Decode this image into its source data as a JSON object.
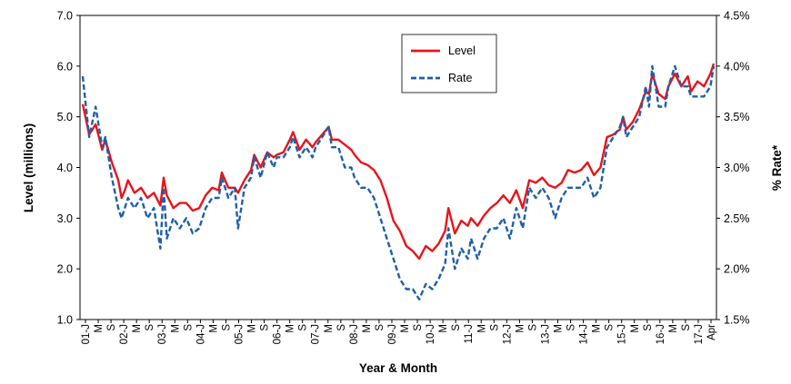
{
  "chart_data": {
    "type": "line",
    "xlabel": "Year & Month",
    "ylabel_left": "Level (millions)",
    "ylabel_right": "% Rate*",
    "ylim_left": [
      1.0,
      7.0
    ],
    "yticks_left": [
      "1.0",
      "2.0",
      "3.0",
      "4.0",
      "5.0",
      "6.0",
      "7.0"
    ],
    "ylim_right": [
      1.5,
      4.5
    ],
    "yticks_right": [
      "1.5%",
      "2.0%",
      "2.5%",
      "3.0%",
      "3.5%",
      "4.0%",
      "4.5%"
    ],
    "grid": false,
    "legend_position": "top-center",
    "x_start": "2001-01",
    "x_end": "2017-04",
    "x_tick_labels": [
      "01-J",
      "M",
      "S",
      "02-J",
      "M",
      "S",
      "03-J",
      "M",
      "S",
      "04-J",
      "M",
      "S",
      "05-J",
      "M",
      "S",
      "06-J",
      "M",
      "S",
      "07-J",
      "M",
      "S",
      "08-J",
      "M",
      "S",
      "09-J",
      "M",
      "S",
      "10-J",
      "M",
      "S",
      "11-J",
      "M",
      "S",
      "12-J",
      "M",
      "S",
      "13-J",
      "M",
      "S",
      "14-J",
      "M",
      "S",
      "15-J",
      "M",
      "S",
      "16-J",
      "M",
      "S",
      "17-J",
      "Apr"
    ],
    "series": [
      {
        "name": "Level",
        "axis": "left",
        "color": "#e8141a",
        "style": "solid",
        "points": [
          [
            "2001-01",
            5.25
          ],
          [
            "2001-03",
            4.65
          ],
          [
            "2001-05",
            4.85
          ],
          [
            "2001-07",
            4.35
          ],
          [
            "2001-08",
            4.55
          ],
          [
            "2001-10",
            4.1
          ],
          [
            "2001-12",
            3.75
          ],
          [
            "2002-01",
            3.4
          ],
          [
            "2002-02",
            3.55
          ],
          [
            "2002-03",
            3.75
          ],
          [
            "2002-05",
            3.5
          ],
          [
            "2002-07",
            3.6
          ],
          [
            "2002-09",
            3.4
          ],
          [
            "2002-11",
            3.5
          ],
          [
            "2003-01",
            3.25
          ],
          [
            "2003-02",
            3.8
          ],
          [
            "2003-03",
            3.45
          ],
          [
            "2003-05",
            3.2
          ],
          [
            "2003-07",
            3.3
          ],
          [
            "2003-09",
            3.3
          ],
          [
            "2003-11",
            3.15
          ],
          [
            "2004-01",
            3.2
          ],
          [
            "2004-03",
            3.45
          ],
          [
            "2004-05",
            3.6
          ],
          [
            "2004-07",
            3.55
          ],
          [
            "2004-08",
            3.9
          ],
          [
            "2004-10",
            3.6
          ],
          [
            "2004-12",
            3.6
          ],
          [
            "2005-01",
            3.5
          ],
          [
            "2005-03",
            3.75
          ],
          [
            "2005-05",
            3.95
          ],
          [
            "2005-06",
            4.25
          ],
          [
            "2005-08",
            4.0
          ],
          [
            "2005-10",
            4.3
          ],
          [
            "2005-12",
            4.2
          ],
          [
            "2006-01",
            4.25
          ],
          [
            "2006-03",
            4.3
          ],
          [
            "2006-05",
            4.55
          ],
          [
            "2006-06",
            4.7
          ],
          [
            "2006-08",
            4.35
          ],
          [
            "2006-10",
            4.55
          ],
          [
            "2006-12",
            4.4
          ],
          [
            "2007-01",
            4.5
          ],
          [
            "2007-03",
            4.65
          ],
          [
            "2007-05",
            4.8
          ],
          [
            "2007-06",
            4.55
          ],
          [
            "2007-08",
            4.55
          ],
          [
            "2007-10",
            4.45
          ],
          [
            "2007-12",
            4.35
          ],
          [
            "2008-01",
            4.25
          ],
          [
            "2008-03",
            4.1
          ],
          [
            "2008-05",
            4.05
          ],
          [
            "2008-07",
            3.95
          ],
          [
            "2008-09",
            3.75
          ],
          [
            "2008-11",
            3.4
          ],
          [
            "2009-01",
            2.95
          ],
          [
            "2009-03",
            2.75
          ],
          [
            "2009-05",
            2.45
          ],
          [
            "2009-07",
            2.35
          ],
          [
            "2009-09",
            2.2
          ],
          [
            "2009-11",
            2.45
          ],
          [
            "2010-01",
            2.35
          ],
          [
            "2010-03",
            2.5
          ],
          [
            "2010-05",
            2.75
          ],
          [
            "2010-06",
            3.2
          ],
          [
            "2010-08",
            2.7
          ],
          [
            "2010-10",
            2.95
          ],
          [
            "2010-12",
            2.85
          ],
          [
            "2011-01",
            3.0
          ],
          [
            "2011-03",
            2.85
          ],
          [
            "2011-05",
            3.05
          ],
          [
            "2011-07",
            3.2
          ],
          [
            "2011-09",
            3.3
          ],
          [
            "2011-11",
            3.45
          ],
          [
            "2012-01",
            3.3
          ],
          [
            "2012-03",
            3.55
          ],
          [
            "2012-05",
            3.2
          ],
          [
            "2012-07",
            3.75
          ],
          [
            "2012-09",
            3.7
          ],
          [
            "2012-11",
            3.8
          ],
          [
            "2013-01",
            3.65
          ],
          [
            "2013-03",
            3.6
          ],
          [
            "2013-05",
            3.7
          ],
          [
            "2013-07",
            3.95
          ],
          [
            "2013-09",
            3.9
          ],
          [
            "2013-11",
            3.95
          ],
          [
            "2014-01",
            4.1
          ],
          [
            "2014-03",
            3.85
          ],
          [
            "2014-05",
            4.0
          ],
          [
            "2014-07",
            4.6
          ],
          [
            "2014-09",
            4.65
          ],
          [
            "2014-11",
            4.75
          ],
          [
            "2014-12",
            5.0
          ],
          [
            "2015-01",
            4.75
          ],
          [
            "2015-03",
            4.9
          ],
          [
            "2015-05",
            5.15
          ],
          [
            "2015-07",
            5.5
          ],
          [
            "2015-08",
            5.45
          ],
          [
            "2015-09",
            5.85
          ],
          [
            "2015-11",
            5.45
          ],
          [
            "2016-01",
            5.35
          ],
          [
            "2016-02",
            5.6
          ],
          [
            "2016-04",
            5.85
          ],
          [
            "2016-06",
            5.6
          ],
          [
            "2016-08",
            5.8
          ],
          [
            "2016-09",
            5.5
          ],
          [
            "2016-11",
            5.7
          ],
          [
            "2017-01",
            5.6
          ],
          [
            "2017-03",
            5.85
          ],
          [
            "2017-04",
            6.05
          ]
        ]
      },
      {
        "name": "Rate",
        "axis": "right",
        "color": "#1f5fa8",
        "style": "dashed",
        "points": [
          [
            "2001-01",
            3.9
          ],
          [
            "2001-03",
            3.3
          ],
          [
            "2001-05",
            3.6
          ],
          [
            "2001-07",
            3.2
          ],
          [
            "2001-08",
            3.3
          ],
          [
            "2001-10",
            2.9
          ],
          [
            "2001-12",
            2.6
          ],
          [
            "2002-01",
            2.5
          ],
          [
            "2002-03",
            2.7
          ],
          [
            "2002-05",
            2.6
          ],
          [
            "2002-07",
            2.7
          ],
          [
            "2002-09",
            2.5
          ],
          [
            "2002-11",
            2.6
          ],
          [
            "2003-01",
            2.2
          ],
          [
            "2003-02",
            2.8
          ],
          [
            "2003-03",
            2.3
          ],
          [
            "2003-05",
            2.5
          ],
          [
            "2003-07",
            2.4
          ],
          [
            "2003-09",
            2.5
          ],
          [
            "2003-11",
            2.35
          ],
          [
            "2004-01",
            2.4
          ],
          [
            "2004-03",
            2.6
          ],
          [
            "2004-05",
            2.7
          ],
          [
            "2004-07",
            2.7
          ],
          [
            "2004-08",
            2.9
          ],
          [
            "2004-10",
            2.7
          ],
          [
            "2004-12",
            2.8
          ],
          [
            "2005-01",
            2.4
          ],
          [
            "2005-03",
            2.8
          ],
          [
            "2005-05",
            2.9
          ],
          [
            "2005-06",
            3.1
          ],
          [
            "2005-08",
            2.9
          ],
          [
            "2005-10",
            3.15
          ],
          [
            "2005-12",
            3.0
          ],
          [
            "2006-01",
            3.1
          ],
          [
            "2006-03",
            3.1
          ],
          [
            "2006-05",
            3.2
          ],
          [
            "2006-06",
            3.3
          ],
          [
            "2006-08",
            3.1
          ],
          [
            "2006-10",
            3.2
          ],
          [
            "2006-12",
            3.1
          ],
          [
            "2007-01",
            3.2
          ],
          [
            "2007-03",
            3.3
          ],
          [
            "2007-05",
            3.4
          ],
          [
            "2007-06",
            3.2
          ],
          [
            "2007-08",
            3.2
          ],
          [
            "2007-10",
            3.0
          ],
          [
            "2007-12",
            3.0
          ],
          [
            "2008-01",
            2.9
          ],
          [
            "2008-03",
            2.8
          ],
          [
            "2008-05",
            2.8
          ],
          [
            "2008-07",
            2.7
          ],
          [
            "2008-09",
            2.5
          ],
          [
            "2008-11",
            2.3
          ],
          [
            "2009-01",
            2.1
          ],
          [
            "2009-03",
            1.9
          ],
          [
            "2009-05",
            1.8
          ],
          [
            "2009-07",
            1.8
          ],
          [
            "2009-09",
            1.7
          ],
          [
            "2009-11",
            1.85
          ],
          [
            "2010-01",
            1.8
          ],
          [
            "2010-03",
            1.9
          ],
          [
            "2010-05",
            2.05
          ],
          [
            "2010-06",
            2.4
          ],
          [
            "2010-08",
            2.0
          ],
          [
            "2010-10",
            2.2
          ],
          [
            "2010-12",
            2.1
          ],
          [
            "2011-01",
            2.3
          ],
          [
            "2011-03",
            2.1
          ],
          [
            "2011-05",
            2.3
          ],
          [
            "2011-07",
            2.4
          ],
          [
            "2011-09",
            2.4
          ],
          [
            "2011-11",
            2.5
          ],
          [
            "2012-01",
            2.3
          ],
          [
            "2012-03",
            2.6
          ],
          [
            "2012-05",
            2.4
          ],
          [
            "2012-07",
            2.8
          ],
          [
            "2012-09",
            2.7
          ],
          [
            "2012-11",
            2.8
          ],
          [
            "2013-01",
            2.7
          ],
          [
            "2013-03",
            2.5
          ],
          [
            "2013-05",
            2.7
          ],
          [
            "2013-07",
            2.8
          ],
          [
            "2013-09",
            2.8
          ],
          [
            "2013-11",
            2.8
          ],
          [
            "2014-01",
            2.9
          ],
          [
            "2014-03",
            2.7
          ],
          [
            "2014-05",
            2.8
          ],
          [
            "2014-07",
            3.2
          ],
          [
            "2014-09",
            3.3
          ],
          [
            "2014-11",
            3.4
          ],
          [
            "2014-12",
            3.5
          ],
          [
            "2015-01",
            3.3
          ],
          [
            "2015-03",
            3.4
          ],
          [
            "2015-05",
            3.5
          ],
          [
            "2015-07",
            3.8
          ],
          [
            "2015-08",
            3.6
          ],
          [
            "2015-09",
            4.0
          ],
          [
            "2015-11",
            3.6
          ],
          [
            "2016-01",
            3.6
          ],
          [
            "2016-02",
            3.8
          ],
          [
            "2016-04",
            4.0
          ],
          [
            "2016-06",
            3.8
          ],
          [
            "2016-08",
            3.8
          ],
          [
            "2016-09",
            3.7
          ],
          [
            "2016-11",
            3.7
          ],
          [
            "2017-01",
            3.7
          ],
          [
            "2017-03",
            3.8
          ],
          [
            "2017-04",
            4.0
          ]
        ]
      }
    ]
  }
}
